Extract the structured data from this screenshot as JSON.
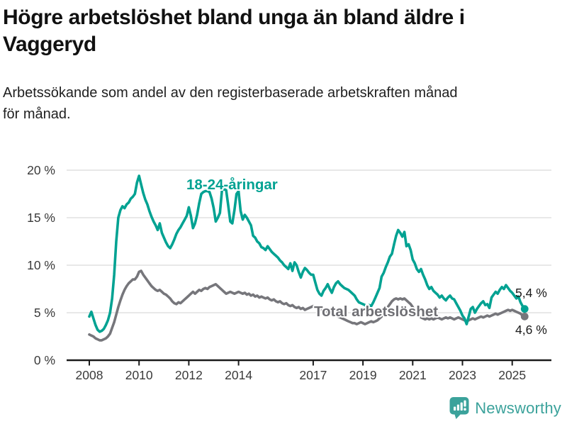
{
  "header": {
    "title": "Högre arbetslöshet bland unga än bland äldre i Vaggeryd",
    "title_lines": [
      "Högre arbetslöshet bland unga än bland äldre i",
      "Vaggeryd"
    ],
    "subtitle": "Arbetssökande som andel av den registerbaserade arbetskraften månad för månad.",
    "subtitle_lines": [
      "Arbetssökande som andel av den registerbaserade arbetskraften månad",
      "för månad."
    ]
  },
  "footer": {
    "brand": "Newsworthy",
    "brand_color": "#3ba29b"
  },
  "colors": {
    "young_series": "#00a292",
    "total_series": "#76767b",
    "gridline": "#d9d9d9",
    "axis": "#1a1a1a",
    "tick_text": "#3a3a3a",
    "end_label_text": "#1a1a1a"
  },
  "chart_data": {
    "type": "line",
    "title": "Högre arbetslöshet bland unga än bland äldre i Vaggeryd",
    "subtitle": "Arbetssökande som andel av den registerbaserade arbetskraften månad för månad.",
    "frequency": "monthly",
    "x_start": "2008-01",
    "x_end": "2025-07",
    "x_tick_labels": [
      "2008",
      "2010",
      "2012",
      "2014",
      "2017",
      "2019",
      "2021",
      "2023",
      "2025"
    ],
    "y_tick_values": [
      0,
      5,
      10,
      15,
      20
    ],
    "y_tick_labels": [
      "0 %",
      "5 %",
      "10 %",
      "15 %",
      "20 %"
    ],
    "ylim": [
      0,
      20
    ],
    "grid": "horizontal",
    "legend_position": "inline-labels",
    "series": [
      {
        "name": "Total arbetslöshet",
        "color": "#76767b",
        "end_label": "4,6 %",
        "end_value": 4.6,
        "values": [
          2.7,
          2.6,
          2.5,
          2.3,
          2.2,
          2.1,
          2.1,
          2.2,
          2.3,
          2.5,
          2.8,
          3.4,
          4.0,
          4.8,
          5.6,
          6.3,
          6.9,
          7.4,
          7.8,
          8.1,
          8.3,
          8.5,
          8.5,
          8.8,
          9.3,
          9.4,
          9.0,
          8.7,
          8.4,
          8.1,
          7.8,
          7.6,
          7.4,
          7.3,
          7.4,
          7.2,
          7.0,
          6.9,
          6.7,
          6.5,
          6.2,
          6.0,
          5.9,
          6.1,
          6.0,
          6.2,
          6.4,
          6.6,
          6.8,
          7.0,
          7.2,
          7.0,
          7.2,
          7.4,
          7.3,
          7.5,
          7.6,
          7.5,
          7.7,
          7.8,
          7.9,
          8.0,
          7.8,
          7.6,
          7.4,
          7.2,
          7.0,
          7.1,
          7.2,
          7.1,
          7.0,
          7.1,
          7.2,
          7.1,
          7.0,
          7.1,
          6.9,
          7.0,
          6.8,
          6.9,
          6.7,
          6.8,
          6.6,
          6.7,
          6.6,
          6.5,
          6.6,
          6.4,
          6.3,
          6.4,
          6.2,
          6.1,
          6.2,
          6.0,
          5.9,
          6.0,
          5.8,
          5.7,
          5.8,
          5.6,
          5.5,
          5.6,
          5.4,
          5.5,
          5.3,
          5.4,
          5.5,
          5.6,
          5.7,
          5.5,
          5.6,
          5.4,
          5.3,
          5.4,
          5.2,
          5.1,
          5.0,
          4.9,
          4.8,
          4.7,
          4.6,
          4.5,
          4.4,
          4.3,
          4.2,
          4.1,
          4.0,
          3.9,
          3.9,
          3.8,
          3.9,
          4.0,
          3.9,
          3.8,
          3.9,
          4.0,
          4.1,
          4.0,
          4.1,
          4.2,
          4.4,
          4.6,
          4.9,
          5.2,
          5.6,
          5.9,
          6.2,
          6.4,
          6.5,
          6.4,
          6.5,
          6.4,
          6.5,
          6.3,
          6.1,
          5.9,
          5.6,
          5.2,
          4.9,
          4.7,
          4.5,
          4.4,
          4.3,
          4.4,
          4.3,
          4.4,
          4.3,
          4.4,
          4.5,
          4.4,
          4.3,
          4.4,
          4.5,
          4.4,
          4.5,
          4.4,
          4.3,
          4.4,
          4.5,
          4.4,
          4.3,
          4.2,
          4.1,
          4.2,
          4.3,
          4.4,
          4.3,
          4.4,
          4.5,
          4.6,
          4.5,
          4.6,
          4.7,
          4.6,
          4.7,
          4.8,
          4.9,
          4.8,
          4.9,
          5.0,
          5.1,
          5.2,
          5.3,
          5.2,
          5.3,
          5.2,
          5.1,
          5.0,
          4.9,
          4.7,
          4.6
        ]
      },
      {
        "name": "18-24-åringar",
        "color": "#00a292",
        "end_label": "5,4 %",
        "end_value": 5.4,
        "values": [
          4.6,
          5.1,
          4.4,
          3.7,
          3.2,
          3.0,
          3.1,
          3.3,
          3.7,
          4.2,
          5.0,
          6.5,
          9.0,
          12.5,
          15.0,
          15.8,
          16.2,
          16.0,
          16.4,
          16.6,
          17.0,
          17.2,
          17.5,
          18.7,
          19.4,
          18.5,
          17.6,
          16.9,
          16.4,
          15.7,
          15.1,
          14.6,
          14.2,
          13.7,
          14.4,
          13.4,
          12.9,
          12.4,
          12.0,
          11.8,
          12.2,
          12.7,
          13.3,
          13.7,
          14.0,
          14.4,
          14.8,
          15.2,
          16.1,
          15.2,
          13.9,
          14.4,
          15.3,
          16.5,
          17.5,
          17.7,
          17.8,
          17.8,
          17.7,
          17.0,
          16.0,
          14.6,
          15.0,
          15.5,
          17.9,
          18.0,
          17.9,
          16.3,
          14.6,
          14.4,
          15.8,
          17.5,
          17.8,
          15.7,
          14.8,
          15.3,
          15.0,
          14.6,
          14.2,
          13.1,
          12.9,
          12.5,
          12.3,
          11.9,
          11.8,
          11.6,
          12.0,
          11.7,
          11.4,
          11.2,
          11.0,
          10.8,
          10.5,
          10.3,
          10.0,
          9.8,
          9.6,
          10.2,
          9.4,
          10.3,
          10.0,
          9.3,
          8.7,
          9.3,
          9.7,
          9.5,
          9.2,
          9.0,
          9.0,
          8.2,
          7.4,
          7.0,
          6.8,
          7.3,
          7.6,
          8.0,
          7.5,
          7.1,
          7.7,
          8.1,
          8.3,
          8.0,
          7.8,
          7.6,
          7.5,
          7.4,
          7.2,
          7.0,
          6.8,
          6.4,
          6.1,
          6.0,
          5.9,
          5.8,
          5.7,
          5.8,
          5.7,
          6.1,
          6.6,
          7.1,
          7.6,
          8.8,
          9.2,
          9.8,
          10.3,
          10.9,
          11.2,
          12.2,
          13.1,
          13.7,
          13.4,
          13.0,
          13.5,
          12.0,
          12.2,
          11.6,
          10.6,
          10.2,
          9.6,
          9.3,
          9.6,
          9.0,
          8.5,
          7.9,
          7.5,
          7.7,
          7.3,
          7.1,
          6.9,
          6.6,
          6.8,
          6.5,
          6.3,
          6.6,
          6.8,
          6.5,
          6.4,
          6.0,
          5.6,
          5.2,
          4.7,
          4.4,
          3.8,
          4.6,
          5.4,
          5.6,
          5.0,
          5.4,
          5.7,
          6.0,
          6.2,
          5.8,
          5.9,
          5.5,
          6.6,
          6.9,
          7.2,
          7.0,
          7.4,
          7.7,
          7.5,
          7.9,
          7.6,
          7.3,
          7.1,
          6.8,
          6.5,
          6.7,
          6.1,
          5.7,
          5.4
        ]
      }
    ]
  }
}
